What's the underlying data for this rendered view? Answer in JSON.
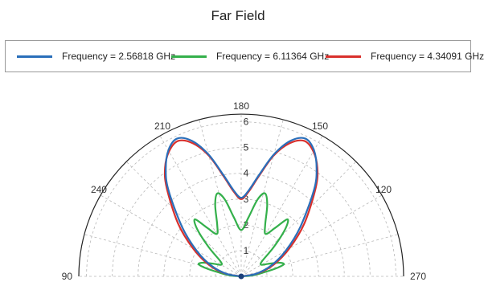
{
  "chart_data": {
    "type": "polar-line",
    "title": "Far Field",
    "angle_ticks": [
      "90",
      "120",
      "150",
      "180",
      "210",
      "240",
      "270"
    ],
    "radial_ticks": [
      "1",
      "2",
      "3",
      "4",
      "5",
      "6"
    ],
    "radial_range": [
      0,
      6.3
    ],
    "angular_span_deg": [
      90,
      270
    ],
    "grid": true,
    "legend_placement": "top",
    "series": [
      {
        "name": "Frequency = 2.56818 GHz",
        "color": "#2a6fba",
        "points": [
          [
            90,
            0
          ],
          [
            100,
            0.6
          ],
          [
            110,
            1.25
          ],
          [
            120,
            2.0
          ],
          [
            130,
            3.0
          ],
          [
            140,
            4.4
          ],
          [
            145,
            5.1
          ],
          [
            150,
            5.65
          ],
          [
            155,
            5.9
          ],
          [
            160,
            5.6
          ],
          [
            165,
            4.9
          ],
          [
            170,
            4.0
          ],
          [
            175,
            3.35
          ],
          [
            180,
            3.05
          ],
          [
            185,
            3.35
          ],
          [
            190,
            4.0
          ],
          [
            195,
            4.9
          ],
          [
            200,
            5.6
          ],
          [
            205,
            5.9
          ],
          [
            210,
            5.65
          ],
          [
            215,
            5.1
          ],
          [
            220,
            4.4
          ],
          [
            230,
            3.0
          ],
          [
            240,
            2.0
          ],
          [
            250,
            1.25
          ],
          [
            260,
            0.6
          ],
          [
            270,
            0
          ]
        ]
      },
      {
        "name": "Frequency = 6.11364 GHz",
        "color": "#34b04b",
        "points": [
          [
            90,
            0
          ],
          [
            95,
            0.45
          ],
          [
            100,
            0.9
          ],
          [
            103,
            1.4
          ],
          [
            106,
            1.72
          ],
          [
            110,
            1.55
          ],
          [
            115,
            1.15
          ],
          [
            120,
            0.9
          ],
          [
            126,
            1.0
          ],
          [
            132,
            1.7
          ],
          [
            137,
            2.5
          ],
          [
            141,
            2.85
          ],
          [
            145,
            2.3
          ],
          [
            150,
            1.9
          ],
          [
            155,
            2.2
          ],
          [
            160,
            2.95
          ],
          [
            164,
            3.35
          ],
          [
            168,
            3.05
          ],
          [
            173,
            2.3
          ],
          [
            180,
            1.8
          ],
          [
            187,
            2.3
          ],
          [
            192,
            3.05
          ],
          [
            196,
            3.35
          ],
          [
            200,
            2.95
          ],
          [
            205,
            2.2
          ],
          [
            210,
            1.9
          ],
          [
            215,
            2.3
          ],
          [
            219,
            2.85
          ],
          [
            223,
            2.5
          ],
          [
            228,
            1.7
          ],
          [
            234,
            1.0
          ],
          [
            240,
            0.9
          ],
          [
            245,
            1.15
          ],
          [
            250,
            1.55
          ],
          [
            254,
            1.72
          ],
          [
            257,
            1.4
          ],
          [
            260,
            0.9
          ],
          [
            265,
            0.45
          ],
          [
            270,
            0
          ]
        ]
      },
      {
        "name": "Frequency = 4.34091 GHz",
        "color": "#d9302c",
        "points": [
          [
            90,
            0
          ],
          [
            100,
            0.65
          ],
          [
            110,
            1.35
          ],
          [
            120,
            2.15
          ],
          [
            130,
            3.2
          ],
          [
            140,
            4.5
          ],
          [
            145,
            5.15
          ],
          [
            150,
            5.6
          ],
          [
            155,
            5.8
          ],
          [
            160,
            5.5
          ],
          [
            165,
            4.85
          ],
          [
            170,
            3.95
          ],
          [
            175,
            3.3
          ],
          [
            180,
            3.0
          ],
          [
            185,
            3.3
          ],
          [
            190,
            3.95
          ],
          [
            195,
            4.85
          ],
          [
            200,
            5.5
          ],
          [
            205,
            5.8
          ],
          [
            210,
            5.6
          ],
          [
            215,
            5.15
          ],
          [
            220,
            4.5
          ],
          [
            230,
            3.2
          ],
          [
            240,
            2.15
          ],
          [
            250,
            1.35
          ],
          [
            260,
            0.65
          ],
          [
            270,
            0
          ]
        ]
      }
    ]
  }
}
